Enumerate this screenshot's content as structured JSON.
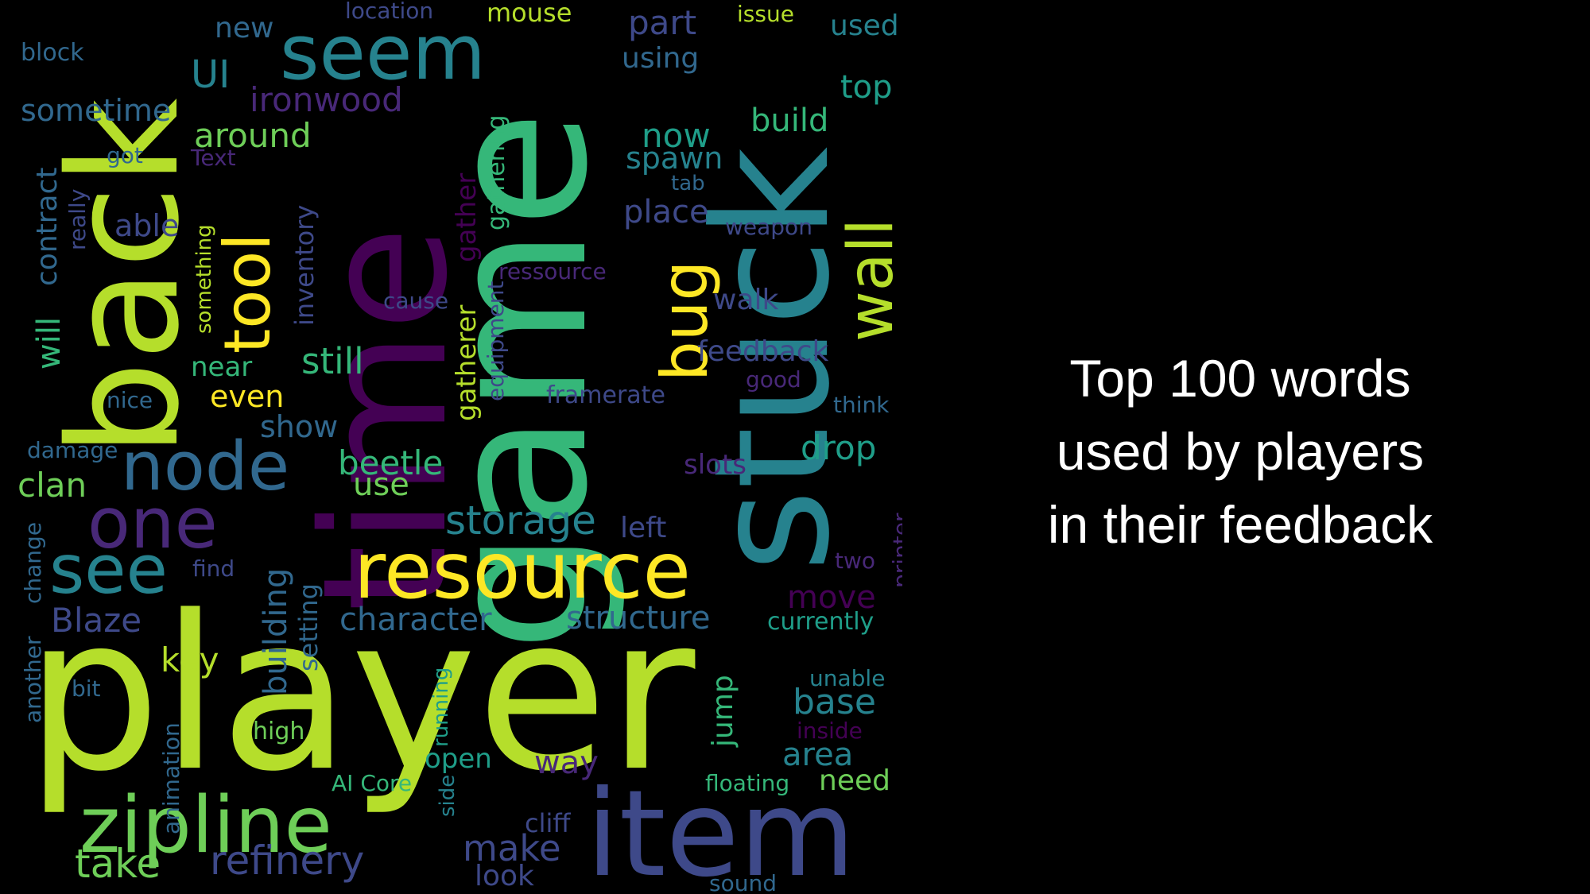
{
  "caption": {
    "line1": "Top 100 words",
    "line2": "used by players",
    "line3": "in their feedback"
  },
  "word_cloud": {
    "word_count": 100,
    "colors": [
      "#440154",
      "#482878",
      "#3e4989",
      "#31688e",
      "#26828e",
      "#1f9e89",
      "#35b779",
      "#6ece58",
      "#b5de2b",
      "#fde725"
    ],
    "words": [
      {
        "text": "player",
        "color": "#b5de2b"
      },
      {
        "text": "game",
        "color": "#35b779"
      },
      {
        "text": "time",
        "color": "#440154"
      },
      {
        "text": "stuck",
        "color": "#26828e"
      },
      {
        "text": "back",
        "color": "#b5de2b"
      },
      {
        "text": "item",
        "color": "#3e4989"
      },
      {
        "text": "zipline",
        "color": "#6ece58"
      },
      {
        "text": "resource",
        "color": "#fde725"
      },
      {
        "text": "seem",
        "color": "#26828e"
      },
      {
        "text": "node",
        "color": "#31688e"
      },
      {
        "text": "one",
        "color": "#482878"
      },
      {
        "text": "see",
        "color": "#26828e"
      },
      {
        "text": "tool",
        "color": "#fde725"
      },
      {
        "text": "bug",
        "color": "#fde725"
      },
      {
        "text": "wall",
        "color": "#b5de2b"
      },
      {
        "text": "storage",
        "color": "#26828e"
      },
      {
        "text": "refinery",
        "color": "#3e4989"
      },
      {
        "text": "take",
        "color": "#6ece58"
      },
      {
        "text": "make",
        "color": "#3e4989"
      },
      {
        "text": "character",
        "color": "#31688e"
      },
      {
        "text": "structure",
        "color": "#31688e"
      },
      {
        "text": "Blaze",
        "color": "#3e4989"
      },
      {
        "text": "key",
        "color": "#b5de2b"
      },
      {
        "text": "clan",
        "color": "#6ece58"
      },
      {
        "text": "beetle",
        "color": "#35b779"
      },
      {
        "text": "use",
        "color": "#6ece58"
      },
      {
        "text": "still",
        "color": "#35b779"
      },
      {
        "text": "ironwood",
        "color": "#482878"
      },
      {
        "text": "around",
        "color": "#6ece58"
      },
      {
        "text": "part",
        "color": "#3e4989"
      },
      {
        "text": "using",
        "color": "#31688e"
      },
      {
        "text": "mouse",
        "color": "#b5de2b"
      },
      {
        "text": "location",
        "color": "#3e4989"
      },
      {
        "text": "issue",
        "color": "#b5de2b"
      },
      {
        "text": "used",
        "color": "#26828e"
      },
      {
        "text": "new",
        "color": "#31688e"
      },
      {
        "text": "block",
        "color": "#31688e"
      },
      {
        "text": "UI",
        "color": "#26828e"
      },
      {
        "text": "sometime",
        "color": "#31688e"
      },
      {
        "text": "top",
        "color": "#1f9e89"
      },
      {
        "text": "now",
        "color": "#1f9e89"
      },
      {
        "text": "build",
        "color": "#35b779"
      },
      {
        "text": "spawn",
        "color": "#26828e"
      },
      {
        "text": "place",
        "color": "#3e4989"
      },
      {
        "text": "tab",
        "color": "#31688e"
      },
      {
        "text": "weapon",
        "color": "#3e4989"
      },
      {
        "text": "got",
        "color": "#31688e"
      },
      {
        "text": "Text",
        "color": "#482878"
      },
      {
        "text": "able",
        "color": "#3e4989"
      },
      {
        "text": "ressource",
        "color": "#482878"
      },
      {
        "text": "cause",
        "color": "#3e4989"
      },
      {
        "text": "walk",
        "color": "#3e4989"
      },
      {
        "text": "feedback",
        "color": "#3e4989"
      },
      {
        "text": "near",
        "color": "#35b779"
      },
      {
        "text": "even",
        "color": "#fde725"
      },
      {
        "text": "show",
        "color": "#31688e"
      },
      {
        "text": "good",
        "color": "#482878"
      },
      {
        "text": "framerate",
        "color": "#3e4989"
      },
      {
        "text": "think",
        "color": "#31688e"
      },
      {
        "text": "nice",
        "color": "#31688e"
      },
      {
        "text": "damage",
        "color": "#31688e"
      },
      {
        "text": "drop",
        "color": "#1f9e89"
      },
      {
        "text": "slots",
        "color": "#482878"
      },
      {
        "text": "left",
        "color": "#3e4989"
      },
      {
        "text": "find",
        "color": "#3e4989"
      },
      {
        "text": "two",
        "color": "#482878"
      },
      {
        "text": "move",
        "color": "#440154"
      },
      {
        "text": "currently",
        "color": "#1f9e89"
      },
      {
        "text": "unable",
        "color": "#26828e"
      },
      {
        "text": "base",
        "color": "#26828e"
      },
      {
        "text": "inside",
        "color": "#440154"
      },
      {
        "text": "bit",
        "color": "#31688e"
      },
      {
        "text": "high",
        "color": "#6ece58"
      },
      {
        "text": "area",
        "color": "#26828e"
      },
      {
        "text": "way",
        "color": "#482878"
      },
      {
        "text": "open",
        "color": "#1f9e89"
      },
      {
        "text": "AI Core",
        "color": "#35b779"
      },
      {
        "text": "floating",
        "color": "#35b779"
      },
      {
        "text": "need",
        "color": "#6ece58"
      },
      {
        "text": "cliff",
        "color": "#3e4989"
      },
      {
        "text": "look",
        "color": "#3e4989"
      },
      {
        "text": "sound",
        "color": "#31688e"
      },
      {
        "text": "will",
        "color": "#35b779"
      },
      {
        "text": "contract",
        "color": "#31688e"
      },
      {
        "text": "really",
        "color": "#3e4989"
      },
      {
        "text": "something",
        "color": "#b5de2b"
      },
      {
        "text": "inventory",
        "color": "#3e4989"
      },
      {
        "text": "gatherer",
        "color": "#b5de2b"
      },
      {
        "text": "gather",
        "color": "#440154"
      },
      {
        "text": "gathering",
        "color": "#35b779"
      },
      {
        "text": "equipment",
        "color": "#3e4989"
      },
      {
        "text": "building",
        "color": "#31688e"
      },
      {
        "text": "setting",
        "color": "#31688e"
      },
      {
        "text": "another",
        "color": "#31688e"
      },
      {
        "text": "change",
        "color": "#31688e"
      },
      {
        "text": "animation",
        "color": "#31688e"
      },
      {
        "text": "running",
        "color": "#1f9e89"
      },
      {
        "text": "side",
        "color": "#26828e"
      },
      {
        "text": "jump",
        "color": "#35b779"
      },
      {
        "text": "printer",
        "color": "#482878"
      }
    ]
  }
}
